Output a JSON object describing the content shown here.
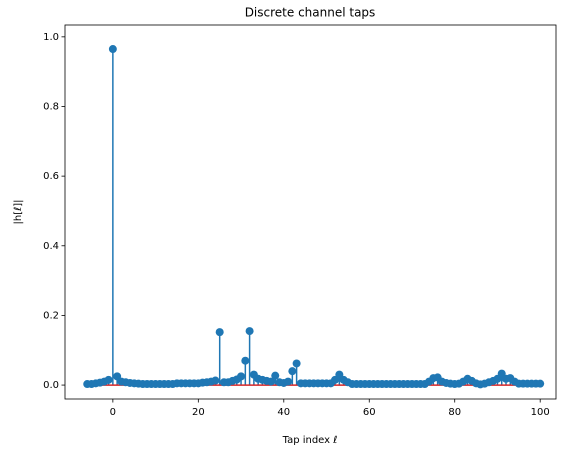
{
  "chart_data": {
    "type": "stem",
    "title": "Discrete channel taps",
    "xlabel": "Tap index ℓ",
    "ylabel": "|h[ℓ]|",
    "color": "#1f77b4",
    "baseline_color": "#d62728",
    "x": [
      -6,
      -5,
      -4,
      -3,
      -2,
      -1,
      0,
      1,
      2,
      3,
      4,
      5,
      6,
      7,
      8,
      9,
      10,
      11,
      12,
      13,
      14,
      15,
      16,
      17,
      18,
      19,
      20,
      21,
      22,
      23,
      24,
      25,
      26,
      27,
      28,
      29,
      30,
      31,
      32,
      33,
      34,
      35,
      36,
      37,
      38,
      39,
      40,
      41,
      42,
      43,
      44,
      45,
      46,
      47,
      48,
      49,
      50,
      51,
      52,
      53,
      54,
      55,
      56,
      57,
      58,
      59,
      60,
      61,
      62,
      63,
      64,
      65,
      66,
      67,
      68,
      69,
      70,
      71,
      72,
      73,
      74,
      75,
      76,
      77,
      78,
      79,
      80,
      81,
      82,
      83,
      84,
      85,
      86,
      87,
      88,
      89,
      90,
      91,
      92,
      93,
      94,
      95,
      96,
      97,
      98,
      99,
      100
    ],
    "values": [
      0.003,
      0.003,
      0.005,
      0.007,
      0.01,
      0.015,
      0.965,
      0.025,
      0.01,
      0.008,
      0.006,
      0.005,
      0.004,
      0.003,
      0.003,
      0.003,
      0.003,
      0.003,
      0.003,
      0.003,
      0.003,
      0.005,
      0.005,
      0.005,
      0.005,
      0.005,
      0.005,
      0.007,
      0.008,
      0.01,
      0.013,
      0.152,
      0.008,
      0.008,
      0.012,
      0.016,
      0.025,
      0.07,
      0.155,
      0.03,
      0.018,
      0.015,
      0.012,
      0.01,
      0.027,
      0.008,
      0.006,
      0.01,
      0.04,
      0.062,
      0.005,
      0.005,
      0.005,
      0.005,
      0.005,
      0.005,
      0.005,
      0.005,
      0.015,
      0.03,
      0.015,
      0.008,
      0.003,
      0.003,
      0.003,
      0.003,
      0.003,
      0.003,
      0.003,
      0.003,
      0.003,
      0.003,
      0.003,
      0.003,
      0.003,
      0.003,
      0.003,
      0.003,
      0.003,
      0.003,
      0.01,
      0.02,
      0.022,
      0.01,
      0.006,
      0.004,
      0.003,
      0.004,
      0.01,
      0.018,
      0.012,
      0.005,
      0.002,
      0.004,
      0.008,
      0.012,
      0.018,
      0.033,
      0.018,
      0.02,
      0.01,
      0.004,
      0.004,
      0.004,
      0.004,
      0.004,
      0.004
    ],
    "xlim": [
      -11.2,
      103.7
    ],
    "xticks": [
      0,
      20,
      40,
      60,
      80,
      100
    ],
    "ylim": [
      -0.04,
      1.034
    ],
    "yticks": [
      {
        "value": 0,
        "label": "0.0"
      },
      0.2,
      0.4,
      0.6,
      0.8,
      {
        "value": 1,
        "label": "1.0"
      }
    ]
  }
}
